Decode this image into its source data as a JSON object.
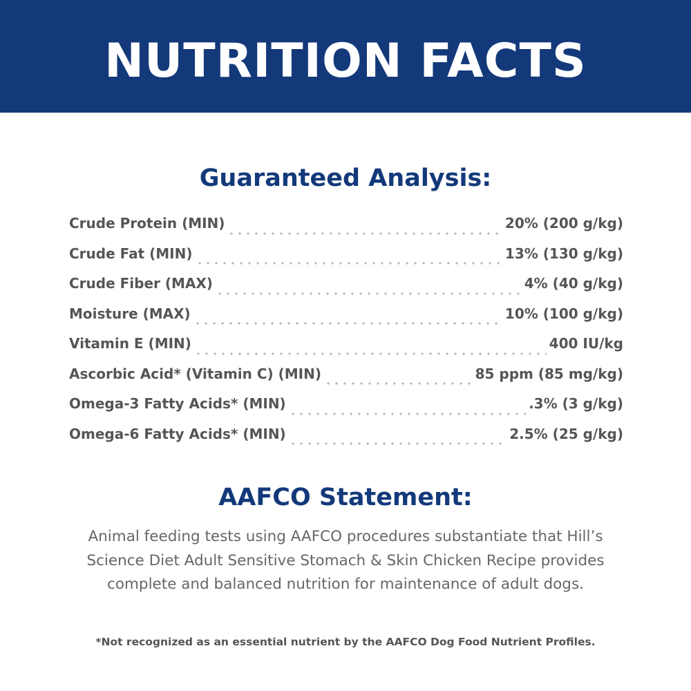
{
  "header": {
    "title": "NUTRITION FACTS"
  },
  "analysis": {
    "heading": "Guaranteed Analysis:",
    "rows": [
      [
        "Crude Protein (MIN)",
        "20% (200 g/kg)"
      ],
      [
        "Crude Fat (MIN)",
        "13% (130 g/kg)"
      ],
      [
        "Crude Fiber (MAX)",
        "4% (40 g/kg)"
      ],
      [
        "Moisture (MAX)",
        "10% (100 g/kg)"
      ],
      [
        "Vitamin E (MIN)",
        "400 IU/kg"
      ],
      [
        "Ascorbic Acid* (Vitamin C) (MIN)",
        "85 ppm (85 mg/kg)"
      ],
      [
        "Omega-3 Fatty Acids* (MIN)",
        ".3% (3 g/kg)"
      ],
      [
        "Omega-6 Fatty Acids* (MIN)",
        "2.5% (25 g/kg)"
      ]
    ]
  },
  "statement": {
    "heading": "AAFCO Statement:",
    "lines": [
      "Animal feeding tests using AAFCO procedures substantiate that Hill’s",
      "Science Diet Adult Sensitive Stomach & Skin Chicken Recipe provides",
      "complete and balanced nutrition for maintenance of adult dogs."
    ]
  },
  "footnote": "*Not recognized as an essential nutrient by the AAFCO Dog Food Nutrient Profiles."
}
